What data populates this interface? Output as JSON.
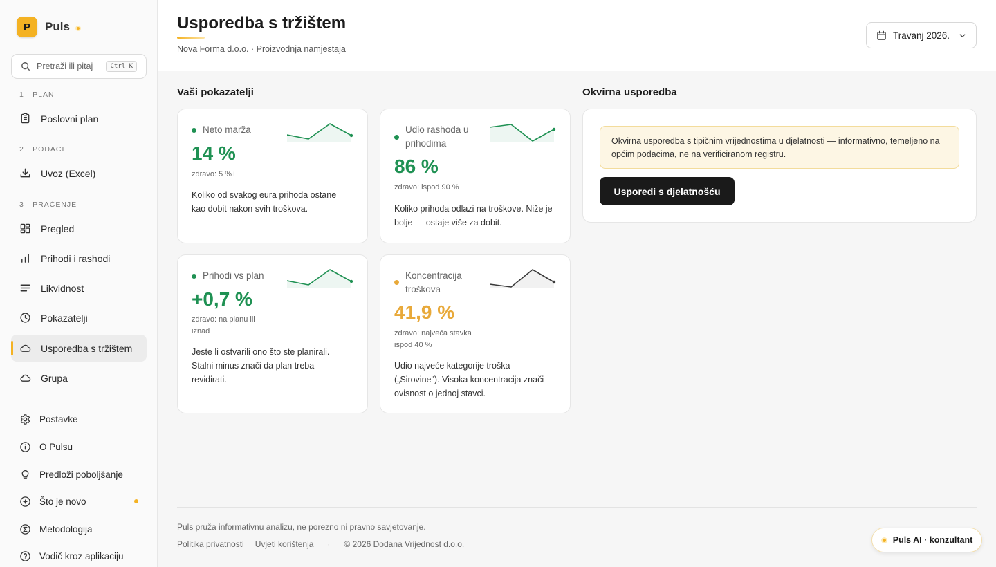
{
  "brand": {
    "logo_letter": "P",
    "name": "Puls"
  },
  "search": {
    "placeholder": "Pretraži ili pitaj",
    "shortcut": "Ctrl K"
  },
  "sidebar": {
    "sections": [
      {
        "label": "1 · PLAN"
      },
      {
        "label": "2 · PODACI"
      },
      {
        "label": "3 · PRAĆENJE"
      }
    ],
    "items": [
      {
        "label": "Poslovni plan",
        "icon": "document-icon"
      },
      {
        "label": "Uvoz (Excel)",
        "icon": "download-icon"
      },
      {
        "label": "Pregled",
        "icon": "dashboard-icon"
      },
      {
        "label": "Prihodi i rashodi",
        "icon": "bar-chart-icon"
      },
      {
        "label": "Likvidnost",
        "icon": "lines-icon"
      },
      {
        "label": "Pokazatelji",
        "icon": "clock-icon"
      },
      {
        "label": "Usporedba s tržištem",
        "icon": "cloud-icon",
        "active": true
      },
      {
        "label": "Grupa",
        "icon": "cloud-icon"
      }
    ],
    "bottom_items": [
      {
        "label": "Postavke",
        "icon": "gear-icon"
      },
      {
        "label": "O Pulsu",
        "icon": "info-icon"
      },
      {
        "label": "Predloži poboljšanje",
        "icon": "lightbulb-icon"
      },
      {
        "label": "Što je novo",
        "icon": "sparkle-icon",
        "badge": true
      },
      {
        "label": "Metodologija",
        "icon": "sigma-icon"
      },
      {
        "label": "Vodič kroz aplikaciju",
        "icon": "help-icon"
      }
    ]
  },
  "header": {
    "title": "Usporedba s tržištem",
    "subtitle": "Nova Forma d.o.o. · Proizvodnja namjestaja",
    "period": "Travanj 2026."
  },
  "main": {
    "indicators_heading": "Vaši pokazatelji",
    "kpis": [
      {
        "title": "Neto marža",
        "value": "14 %",
        "health": "zdravo: 5 %+",
        "description": "Koliko od svakog eura prihoda ostane kao dobit nakon svih troškova.",
        "status": "good",
        "sparkline": [
          2,
          1,
          5,
          2
        ]
      },
      {
        "title": "Udio rashoda u prihodima",
        "value": "86 %",
        "health": "zdravo: ispod 90 %",
        "description": "Koliko prihoda odlazi na troškove. Niže je bolje — ostaje više za dobit.",
        "status": "good",
        "sparkline": [
          4,
          5,
          1,
          3
        ]
      },
      {
        "title": "Prihodi vs plan",
        "value": "+0,7 %",
        "health": "zdravo: na planu ili iznad",
        "description": "Jeste li ostvarili ono što ste planirali. Stalni minus znači da plan treba revidirati.",
        "status": "good",
        "sparkline": [
          2,
          1,
          5,
          2
        ]
      },
      {
        "title": "Koncentracija troškova",
        "value": "41,9 %",
        "health": "zdravo: najveća stavka ispod 40 %",
        "description": "Udio najveće kategorije troška („Sirovine\"). Visoka koncentracija znači ovisnost o jednoj stavci.",
        "status": "warning",
        "sparkline": [
          2,
          1,
          5,
          2
        ]
      }
    ],
    "benchmark_heading": "Okvirna usporedba",
    "benchmark_notice": "Okvirna usporedba s tipičnim vrijednostima u djelatnosti — informativno, temeljeno na općim podacima, ne na verificiranom registru.",
    "benchmark_button": "Usporedi s djelatnošću"
  },
  "footer": {
    "disclaimer": "Puls pruža informativnu analizu, ne porezno ni pravno savjetovanje.",
    "privacy": "Politika privatnosti",
    "terms": "Uvjeti korištenja",
    "copyright": "© 2026 Dodana Vrijednost d.o.o."
  },
  "ai_button": "Puls AI · konzultant",
  "colors": {
    "accent": "#f4b223",
    "good": "#1f9153",
    "warning": "#e8a93a",
    "dark": "#1a1a1a"
  }
}
